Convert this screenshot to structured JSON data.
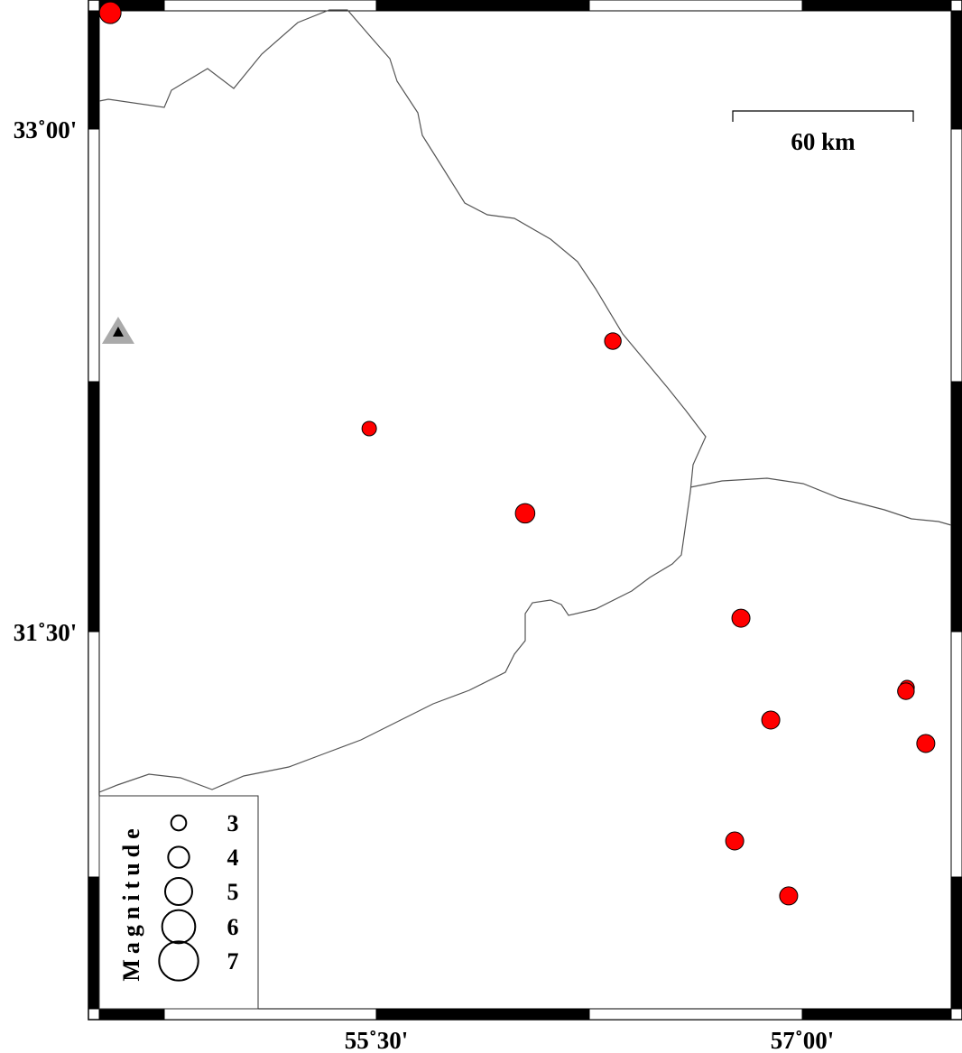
{
  "map": {
    "extent": {
      "lon_min": 54.525,
      "lon_max": 57.525,
      "lat_min": 30.48,
      "lat_max": 33.35
    },
    "lat_ticks": [
      {
        "value": 33.0,
        "label": "33˚00'"
      },
      {
        "value": 31.5,
        "label": "31˚30'"
      }
    ],
    "lon_ticks": [
      {
        "value": 55.5,
        "label": "55˚30'"
      },
      {
        "value": 57.0,
        "label": "57˚00'"
      }
    ],
    "scale_bar": {
      "label": "60 km"
    },
    "colors": {
      "event_fill": "#ff0000",
      "event_stroke": "#000000",
      "border": "#555555",
      "station_outer": "#aaaaaa",
      "station_inner": "#000000"
    },
    "events": [
      {
        "lon": 54.563,
        "lat": 33.347,
        "mag": 3.5
      },
      {
        "lon": 56.333,
        "lat": 32.367,
        "mag": 2.8
      },
      {
        "lon": 55.475,
        "lat": 32.106,
        "mag": 2.5
      },
      {
        "lon": 56.024,
        "lat": 31.853,
        "mag": 3.2
      },
      {
        "lon": 56.784,
        "lat": 31.54,
        "mag": 3.0
      },
      {
        "lon": 57.369,
        "lat": 31.333,
        "mag": 2.5
      },
      {
        "lon": 57.365,
        "lat": 31.322,
        "mag": 2.8
      },
      {
        "lon": 56.889,
        "lat": 31.236,
        "mag": 3.0
      },
      {
        "lon": 57.435,
        "lat": 31.166,
        "mag": 3.0
      },
      {
        "lon": 56.762,
        "lat": 30.875,
        "mag": 3.0
      },
      {
        "lon": 56.952,
        "lat": 30.711,
        "mag": 3.0
      }
    ],
    "station": {
      "lon": 54.591,
      "lat": 32.394,
      "icon": "triangle-icon"
    }
  },
  "legend": {
    "title": "Magnitude",
    "items": [
      {
        "mag": 3,
        "label": "3"
      },
      {
        "mag": 4,
        "label": "4"
      },
      {
        "mag": 5,
        "label": "5"
      },
      {
        "mag": 6,
        "label": "6"
      },
      {
        "mag": 7,
        "label": "7"
      }
    ]
  }
}
